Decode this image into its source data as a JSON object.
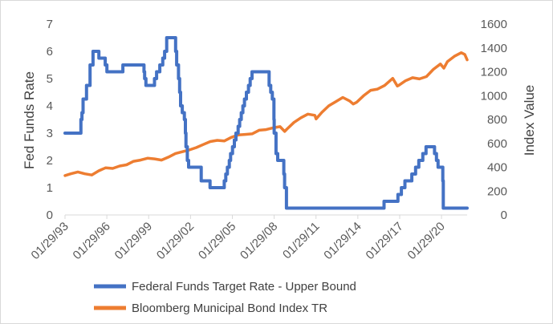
{
  "chart_data": {
    "type": "line",
    "title": "",
    "x_tick_labels": [
      "01/29/93",
      "01/29/96",
      "01/29/99",
      "01/29/02",
      "01/29/05",
      "01/29/08",
      "01/29/11",
      "01/29/14",
      "01/29/17",
      "01/29/20"
    ],
    "x_range": [
      "1993-01-29",
      "2021-11-30"
    ],
    "left_axis": {
      "label": "Fed Funds Rate",
      "ylim": [
        0,
        7
      ],
      "ticks": [
        "0",
        "1",
        "2",
        "3",
        "4",
        "5",
        "6",
        "7"
      ]
    },
    "right_axis": {
      "label": "Index Value",
      "ylim": [
        0,
        1600
      ],
      "ticks": [
        "0",
        "200",
        "400",
        "600",
        "800",
        "1000",
        "1200",
        "1400",
        "1600"
      ]
    },
    "grid": false,
    "legend_position": "bottom",
    "series": [
      {
        "name": "Federal Funds Target Rate - Upper Bound",
        "axis": "left",
        "color": "#4472c4",
        "points": [
          [
            "1993-01-29",
            3.0
          ],
          [
            "1994-02-04",
            3.0
          ],
          [
            "1994-03-22",
            3.5
          ],
          [
            "1994-04-18",
            3.75
          ],
          [
            "1994-05-17",
            4.25
          ],
          [
            "1994-08-16",
            4.75
          ],
          [
            "1994-11-15",
            5.5
          ],
          [
            "1995-02-01",
            6.0
          ],
          [
            "1995-07-06",
            5.75
          ],
          [
            "1995-12-19",
            5.5
          ],
          [
            "1996-01-31",
            5.25
          ],
          [
            "1997-03-25",
            5.5
          ],
          [
            "1998-09-29",
            5.25
          ],
          [
            "1998-10-15",
            5.0
          ],
          [
            "1998-11-17",
            4.75
          ],
          [
            "1999-06-30",
            5.0
          ],
          [
            "1999-08-24",
            5.25
          ],
          [
            "1999-11-16",
            5.5
          ],
          [
            "2000-02-02",
            5.75
          ],
          [
            "2000-03-21",
            6.0
          ],
          [
            "2000-05-16",
            6.5
          ],
          [
            "2001-01-03",
            6.0
          ],
          [
            "2001-01-31",
            5.5
          ],
          [
            "2001-03-20",
            5.0
          ],
          [
            "2001-04-18",
            4.5
          ],
          [
            "2001-05-15",
            4.0
          ],
          [
            "2001-06-27",
            3.75
          ],
          [
            "2001-08-21",
            3.5
          ],
          [
            "2001-09-17",
            3.0
          ],
          [
            "2001-10-02",
            2.5
          ],
          [
            "2001-11-06",
            2.0
          ],
          [
            "2001-12-11",
            1.75
          ],
          [
            "2002-11-06",
            1.25
          ],
          [
            "2003-06-25",
            1.0
          ],
          [
            "2004-06-30",
            1.25
          ],
          [
            "2004-08-10",
            1.5
          ],
          [
            "2004-09-21",
            1.75
          ],
          [
            "2004-11-10",
            2.0
          ],
          [
            "2004-12-14",
            2.25
          ],
          [
            "2005-02-02",
            2.5
          ],
          [
            "2005-03-22",
            2.75
          ],
          [
            "2005-05-03",
            3.0
          ],
          [
            "2005-06-30",
            3.25
          ],
          [
            "2005-08-09",
            3.5
          ],
          [
            "2005-09-20",
            3.75
          ],
          [
            "2005-11-01",
            4.0
          ],
          [
            "2005-12-13",
            4.25
          ],
          [
            "2006-01-31",
            4.5
          ],
          [
            "2006-03-28",
            4.75
          ],
          [
            "2006-05-10",
            5.0
          ],
          [
            "2006-06-29",
            5.25
          ],
          [
            "2007-09-18",
            4.75
          ],
          [
            "2007-10-31",
            4.5
          ],
          [
            "2007-12-11",
            4.25
          ],
          [
            "2008-01-22",
            3.5
          ],
          [
            "2008-01-30",
            3.0
          ],
          [
            "2008-03-18",
            2.25
          ],
          [
            "2008-04-30",
            2.0
          ],
          [
            "2008-10-08",
            1.5
          ],
          [
            "2008-10-29",
            1.0
          ],
          [
            "2008-12-16",
            0.25
          ],
          [
            "2015-12-16",
            0.5
          ],
          [
            "2016-12-14",
            0.75
          ],
          [
            "2017-03-15",
            1.0
          ],
          [
            "2017-06-14",
            1.25
          ],
          [
            "2017-12-13",
            1.5
          ],
          [
            "2018-03-21",
            1.75
          ],
          [
            "2018-06-13",
            2.0
          ],
          [
            "2018-09-26",
            2.25
          ],
          [
            "2018-12-19",
            2.5
          ],
          [
            "2019-07-31",
            2.25
          ],
          [
            "2019-09-18",
            2.0
          ],
          [
            "2019-10-30",
            1.75
          ],
          [
            "2020-03-03",
            1.25
          ],
          [
            "2020-03-15",
            0.25
          ],
          [
            "2021-11-30",
            0.25
          ]
        ]
      },
      {
        "name": "Bloomberg Municipal Bond Index TR",
        "axis": "right",
        "color": "#ed7d31",
        "points": [
          [
            "1993-01-29",
            330
          ],
          [
            "1993-06-30",
            345
          ],
          [
            "1993-12-31",
            360
          ],
          [
            "1994-06-30",
            345
          ],
          [
            "1994-12-31",
            335
          ],
          [
            "1995-06-30",
            370
          ],
          [
            "1995-12-31",
            395
          ],
          [
            "1996-06-30",
            390
          ],
          [
            "1996-12-31",
            410
          ],
          [
            "1997-06-30",
            420
          ],
          [
            "1997-12-31",
            450
          ],
          [
            "1998-06-30",
            460
          ],
          [
            "1998-12-31",
            475
          ],
          [
            "1999-06-30",
            470
          ],
          [
            "1999-12-31",
            460
          ],
          [
            "2000-06-30",
            485
          ],
          [
            "2000-12-31",
            515
          ],
          [
            "2001-06-30",
            530
          ],
          [
            "2001-12-31",
            545
          ],
          [
            "2002-06-30",
            565
          ],
          [
            "2002-12-31",
            590
          ],
          [
            "2003-06-30",
            615
          ],
          [
            "2003-12-31",
            625
          ],
          [
            "2004-06-30",
            620
          ],
          [
            "2004-12-31",
            650
          ],
          [
            "2005-06-30",
            670
          ],
          [
            "2005-12-31",
            675
          ],
          [
            "2006-06-30",
            680
          ],
          [
            "2006-12-31",
            710
          ],
          [
            "2007-06-30",
            715
          ],
          [
            "2007-12-31",
            730
          ],
          [
            "2008-06-30",
            740
          ],
          [
            "2008-10-31",
            700
          ],
          [
            "2008-12-31",
            720
          ],
          [
            "2009-06-30",
            775
          ],
          [
            "2009-12-31",
            815
          ],
          [
            "2010-06-30",
            845
          ],
          [
            "2010-12-31",
            835
          ],
          [
            "2011-01-31",
            805
          ],
          [
            "2011-06-30",
            860
          ],
          [
            "2011-12-31",
            915
          ],
          [
            "2012-06-30",
            950
          ],
          [
            "2012-12-31",
            985
          ],
          [
            "2013-06-30",
            955
          ],
          [
            "2013-09-30",
            930
          ],
          [
            "2013-12-31",
            945
          ],
          [
            "2014-06-30",
            1000
          ],
          [
            "2014-12-31",
            1045
          ],
          [
            "2015-06-30",
            1055
          ],
          [
            "2015-12-31",
            1085
          ],
          [
            "2016-07-31",
            1145
          ],
          [
            "2016-11-30",
            1080
          ],
          [
            "2016-12-31",
            1085
          ],
          [
            "2017-06-30",
            1125
          ],
          [
            "2017-12-31",
            1150
          ],
          [
            "2018-06-30",
            1140
          ],
          [
            "2018-12-31",
            1160
          ],
          [
            "2019-06-30",
            1220
          ],
          [
            "2019-12-31",
            1265
          ],
          [
            "2020-03-31",
            1230
          ],
          [
            "2020-06-30",
            1285
          ],
          [
            "2020-12-31",
            1330
          ],
          [
            "2021-06-30",
            1360
          ],
          [
            "2021-09-30",
            1345
          ],
          [
            "2021-11-30",
            1300
          ]
        ]
      }
    ]
  }
}
